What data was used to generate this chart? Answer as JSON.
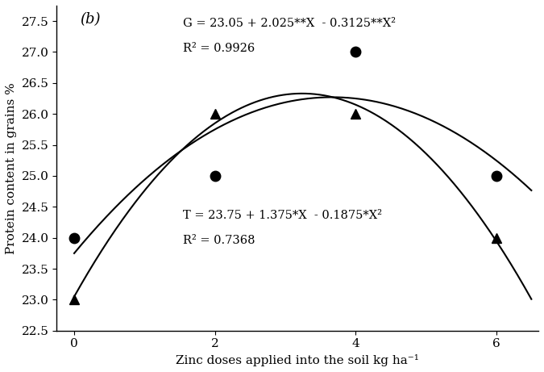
{
  "title_label": "(b)",
  "xlabel": "Zinc doses applied into the soil kg ha⁻¹",
  "ylabel": "Protein content in grains %",
  "xlim": [
    -0.25,
    6.6
  ],
  "ylim": [
    22.5,
    27.75
  ],
  "yticks": [
    22.5,
    23.0,
    23.5,
    24.0,
    24.5,
    25.0,
    25.5,
    26.0,
    26.5,
    27.0,
    27.5
  ],
  "xticks": [
    0,
    2,
    4,
    6
  ],
  "G_data_x": [
    0,
    2,
    4,
    6
  ],
  "G_data_y": [
    24.0,
    25.0,
    27.0,
    25.0
  ],
  "T_data_x": [
    0,
    2,
    4,
    6
  ],
  "T_data_y": [
    23.0,
    26.0,
    26.0,
    24.0
  ],
  "G_eq_line1": "G = 23.05 + 2.025**X  - 0.3125**X²",
  "G_eq_line2": "R² = 0.9926",
  "T_eq_line1": "T = 23.75 + 1.375*X  - 0.1875*X²",
  "T_eq_line2": "R² = 0.7368",
  "G_coeffs": [
    23.05,
    2.025,
    -0.3125
  ],
  "T_coeffs": [
    23.75,
    1.375,
    -0.1875
  ],
  "x_fit_start": 0.0,
  "x_fit_end": 6.5,
  "marker_color": "black",
  "curve_color": "black",
  "background_color": "white",
  "fontsize_eq": 10.5,
  "fontsize_axis_label": 11,
  "fontsize_tick": 11,
  "fontsize_title": 13,
  "markersize_circle": 9,
  "markersize_triangle": 9,
  "linewidth": 1.5
}
